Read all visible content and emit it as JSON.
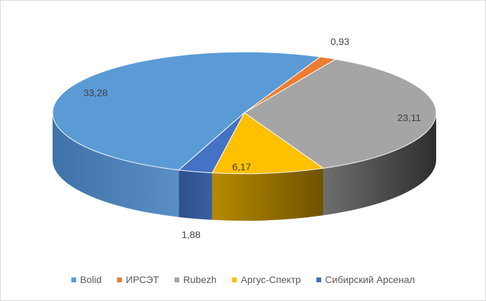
{
  "chart_data": {
    "type": "pie",
    "subtype": "3d-pie",
    "title": "",
    "categories": [
      "Bolid",
      "ИРСЭТ",
      "Rubezh",
      "Аргус-Спектр",
      "Сибирский Арсенал"
    ],
    "values": [
      33.28,
      0.93,
      23.11,
      6.17,
      1.88
    ],
    "value_labels": [
      "33,28",
      "0,93",
      "23,11",
      "6,17",
      "1,88"
    ],
    "colors": [
      "#5b9bd5",
      "#ed7d31",
      "#a5a5a5",
      "#ffc000",
      "#4472c4"
    ],
    "side_colors": [
      [
        "#3e72a8",
        "#5b8fc4"
      ],
      [
        "#b85a1c",
        "#c8641f"
      ],
      [
        "#6e6e6e",
        "#2e2e2e"
      ],
      [
        "#b88a00",
        "#6e5200"
      ],
      [
        "#2d4f8e",
        "#3a5fa0"
      ]
    ],
    "legend_position": "bottom"
  }
}
